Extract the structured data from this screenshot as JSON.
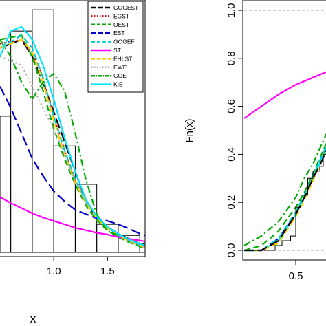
{
  "chart_data": [
    {
      "type": "line",
      "panel": "left",
      "subtype": "histogram with fitted density curves",
      "xlabel": "X",
      "ylabel": "",
      "xlim": [
        0.5,
        1.85
      ],
      "ylim": [
        0,
        2.9
      ],
      "x_ticks": [
        1.0,
        1.5
      ],
      "x_tick_labels": [
        "1.0",
        "1.5"
      ],
      "grid": false,
      "legend_position": "top-right",
      "histogram": {
        "bins": [
          [
            0.5,
            0.6
          ],
          [
            0.6,
            0.8
          ],
          [
            0.8,
            1.0
          ],
          [
            1.0,
            1.2
          ],
          [
            1.2,
            1.4
          ],
          [
            1.4,
            1.6
          ],
          [
            1.6,
            1.8
          ],
          [
            1.8,
            1.85
          ]
        ],
        "heights": [
          1.6,
          2.6,
          2.85,
          1.25,
          0.8,
          0.33,
          0.2,
          0.1
        ]
      },
      "series": [
        {
          "name": "GOGEST",
          "color": "#000000",
          "dash": "long-dash",
          "x": [
            0.5,
            0.7,
            0.8,
            0.9,
            1.0,
            1.1,
            1.2,
            1.3,
            1.4,
            1.5,
            1.6,
            1.7,
            1.8,
            1.85
          ],
          "y": [
            2.4,
            2.5,
            2.3,
            2.0,
            1.65,
            1.3,
            0.95,
            0.6,
            0.4,
            0.3,
            0.22,
            0.16,
            0.1,
            0.08
          ]
        },
        {
          "name": "EGST",
          "color": "#cc0000",
          "dash": "dotted",
          "x": [
            0.5,
            0.7,
            0.8,
            0.9,
            1.0,
            1.1,
            1.2,
            1.3,
            1.4,
            1.5,
            1.6,
            1.7,
            1.8,
            1.85
          ],
          "y": [
            2.45,
            2.5,
            2.35,
            2.05,
            1.6,
            1.2,
            0.85,
            0.6,
            0.42,
            0.3,
            0.22,
            0.15,
            0.1,
            0.08
          ]
        },
        {
          "name": "OEST",
          "color": "#00aa00",
          "dash": "dashed",
          "x": [
            0.5,
            0.7,
            0.8,
            0.9,
            1.0,
            1.1,
            1.2,
            1.3,
            1.4,
            1.5,
            1.6,
            1.7,
            1.8,
            1.85
          ],
          "y": [
            2.5,
            2.55,
            2.3,
            1.9,
            1.45,
            1.1,
            0.8,
            0.55,
            0.38,
            0.26,
            0.18,
            0.12,
            0.07,
            0.05
          ]
        },
        {
          "name": "EST",
          "color": "#0000cc",
          "dash": "long-dash",
          "x": [
            0.5,
            0.6,
            0.7,
            0.8,
            0.9,
            1.0,
            1.1,
            1.2,
            1.3,
            1.4,
            1.5,
            1.6,
            1.7,
            1.8,
            1.85
          ],
          "y": [
            1.95,
            1.7,
            1.4,
            1.1,
            0.9,
            0.72,
            0.6,
            0.5,
            0.45,
            0.4,
            0.37,
            0.33,
            0.28,
            0.22,
            0.2
          ]
        },
        {
          "name": "GOGEF",
          "color": "#00cccc",
          "dash": "dashed",
          "x": [
            0.5,
            0.7,
            0.8,
            0.9,
            1.0,
            1.1,
            1.2,
            1.3,
            1.4,
            1.5,
            1.6,
            1.7,
            1.8,
            1.85
          ],
          "y": [
            2.4,
            2.55,
            2.4,
            2.05,
            1.6,
            1.2,
            0.85,
            0.6,
            0.42,
            0.3,
            0.2,
            0.14,
            0.09,
            0.07
          ]
        },
        {
          "name": "ST",
          "color": "#ff00ff",
          "dash": "solid",
          "x": [
            0.5,
            0.6,
            0.7,
            0.8,
            0.9,
            1.0,
            1.1,
            1.2,
            1.3,
            1.4,
            1.5,
            1.6,
            1.7,
            1.8,
            1.85
          ],
          "y": [
            0.65,
            0.58,
            0.52,
            0.46,
            0.41,
            0.37,
            0.33,
            0.29,
            0.26,
            0.23,
            0.21,
            0.18,
            0.16,
            0.14,
            0.13
          ]
        },
        {
          "name": "EHLST",
          "color": "#ffcc00",
          "dash": "dashed",
          "x": [
            0.5,
            0.7,
            0.8,
            0.9,
            1.0,
            1.1,
            1.2,
            1.3,
            1.4,
            1.5,
            1.6,
            1.7,
            1.8,
            1.85
          ],
          "y": [
            2.4,
            2.5,
            2.35,
            2.0,
            1.55,
            1.15,
            0.82,
            0.58,
            0.4,
            0.28,
            0.2,
            0.13,
            0.08,
            0.06
          ]
        },
        {
          "name": "EWE",
          "color": "#aaaaaa",
          "dash": "dotted",
          "x": [
            0.5,
            0.7,
            0.8,
            0.9,
            1.0,
            1.1,
            1.2,
            1.3,
            1.4,
            1.5,
            1.6,
            1.7,
            1.8,
            1.85
          ],
          "y": [
            2.3,
            2.2,
            1.95,
            1.7,
            1.45,
            1.15,
            0.85,
            0.6,
            0.42,
            0.3,
            0.2,
            0.13,
            0.08,
            0.06
          ]
        },
        {
          "name": "GOE",
          "color": "#00aa00",
          "dash": "dash-dot",
          "x": [
            0.5,
            0.6,
            0.7,
            0.8,
            0.9,
            1.0,
            1.1,
            1.2,
            1.3,
            1.4,
            1.5,
            1.6,
            1.7,
            1.8,
            1.85
          ],
          "y": [
            2.5,
            2.3,
            2.0,
            1.8,
            2.0,
            2.1,
            1.9,
            1.4,
            0.85,
            0.45,
            0.25,
            0.2,
            0.15,
            0.1,
            0.08
          ]
        },
        {
          "name": "KIE",
          "color": "#00e5ff",
          "dash": "solid",
          "x": [
            0.5,
            0.6,
            0.7,
            0.8,
            0.9,
            1.0,
            1.1,
            1.2,
            1.3,
            1.4,
            1.5,
            1.6,
            1.7,
            1.8,
            1.85
          ],
          "y": [
            2.3,
            2.6,
            2.65,
            2.5,
            2.2,
            1.8,
            1.35,
            0.95,
            0.62,
            0.42,
            0.3,
            0.22,
            0.15,
            0.1,
            0.08
          ]
        }
      ]
    },
    {
      "type": "line",
      "panel": "right",
      "subtype": "empirical CDF with fitted CDFs",
      "xlabel": "",
      "ylabel": "Fn(x)",
      "xlim": [
        0.2,
        0.9
      ],
      "ylim": [
        0,
        1.0
      ],
      "x_ticks": [
        0.5
      ],
      "x_tick_labels": [
        "0.5"
      ],
      "y_ticks": [
        0.0,
        0.2,
        0.4,
        0.6,
        0.8,
        1.0
      ],
      "y_tick_labels": [
        "0.0",
        "0.2",
        "0.4",
        "0.6",
        "0.8",
        "1.0"
      ],
      "reference_lines": [
        0,
        1
      ],
      "grid": false,
      "ecdf": {
        "x": [
          0.2,
          0.35,
          0.38,
          0.42,
          0.47,
          0.5,
          0.53,
          0.57,
          0.6,
          0.62,
          0.64,
          0.66,
          0.68,
          0.7,
          0.9
        ],
        "y": [
          0.0,
          0.0,
          0.02,
          0.04,
          0.06,
          0.18,
          0.23,
          0.3,
          0.33,
          0.33,
          0.35,
          0.4,
          0.45,
          0.5,
          0.5
        ]
      },
      "series": [
        {
          "name": "ST",
          "color": "#ff00ff",
          "dash": "solid",
          "x": [
            0.2,
            0.3,
            0.4,
            0.5,
            0.6,
            0.7,
            0.74
          ],
          "y": [
            0.55,
            0.6,
            0.65,
            0.69,
            0.72,
            0.75,
            0.77
          ]
        },
        {
          "name": "EST",
          "color": "#0000cc",
          "dash": "long-dash",
          "x": [
            0.2,
            0.3,
            0.4,
            0.5,
            0.55,
            0.6,
            0.65,
            0.7
          ],
          "y": [
            0.0,
            0.0,
            0.05,
            0.15,
            0.22,
            0.3,
            0.38,
            0.46
          ]
        },
        {
          "name": "GOE",
          "color": "#00aa00",
          "dash": "dash-dot",
          "x": [
            0.2,
            0.3,
            0.4,
            0.5,
            0.55,
            0.6,
            0.65,
            0.7
          ],
          "y": [
            0.02,
            0.06,
            0.12,
            0.22,
            0.3,
            0.36,
            0.44,
            0.52
          ]
        },
        {
          "name": "OEST",
          "color": "#00aa00",
          "dash": "dashed",
          "x": [
            0.2,
            0.3,
            0.4,
            0.5,
            0.55,
            0.6,
            0.65,
            0.7
          ],
          "y": [
            0.0,
            0.02,
            0.08,
            0.18,
            0.24,
            0.32,
            0.4,
            0.48
          ]
        },
        {
          "name": "KIE",
          "color": "#00e5ff",
          "dash": "solid",
          "x": [
            0.2,
            0.3,
            0.4,
            0.5,
            0.55,
            0.6,
            0.65,
            0.7
          ],
          "y": [
            0.0,
            0.0,
            0.04,
            0.15,
            0.22,
            0.3,
            0.38,
            0.45
          ]
        },
        {
          "name": "GOGEF",
          "color": "#00cccc",
          "dash": "dashed",
          "x": [
            0.2,
            0.3,
            0.4,
            0.5,
            0.55,
            0.6,
            0.65,
            0.7
          ],
          "y": [
            0.0,
            0.0,
            0.05,
            0.16,
            0.23,
            0.31,
            0.39,
            0.47
          ]
        },
        {
          "name": "EHLST",
          "color": "#ffcc00",
          "dash": "dashed",
          "x": [
            0.2,
            0.3,
            0.4,
            0.5,
            0.55,
            0.6,
            0.65,
            0.7
          ],
          "y": [
            0.0,
            0.0,
            0.03,
            0.14,
            0.21,
            0.29,
            0.37,
            0.44
          ]
        },
        {
          "name": "GOGEST",
          "color": "#000000",
          "dash": "long-dash",
          "x": [
            0.2,
            0.3,
            0.4,
            0.5,
            0.55,
            0.6,
            0.65,
            0.7
          ],
          "y": [
            0.0,
            0.0,
            0.04,
            0.15,
            0.22,
            0.3,
            0.37,
            0.45
          ]
        }
      ]
    }
  ]
}
